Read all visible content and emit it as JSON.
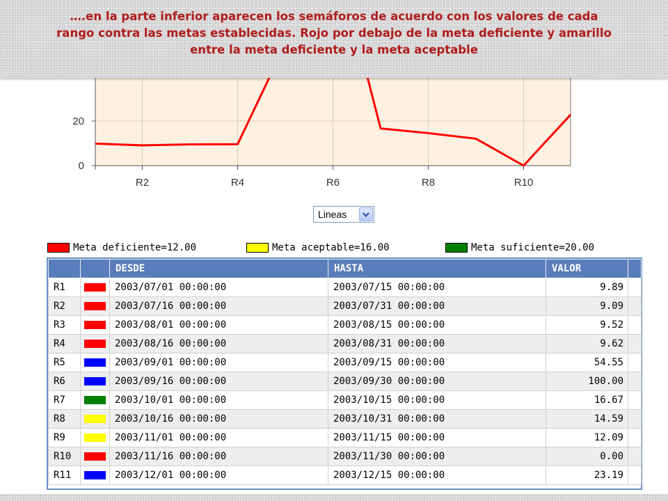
{
  "caption": {
    "line1": "….en la parte inferior aparecen los semáforos de acuerdo con los valores de cada",
    "line2": "rango contra las metas establecidas. Rojo por debajo de la meta deficiente y amarillo",
    "line3": "entre la meta deficiente y la meta aceptable"
  },
  "chart_data": {
    "type": "line",
    "x": [
      "R1",
      "R2",
      "R3",
      "R4",
      "R5",
      "R6",
      "R7",
      "R8",
      "R9",
      "R10",
      "R11"
    ],
    "series": [
      {
        "values": [
          9.89,
          9.09,
          9.52,
          9.62,
          54.55,
          100.0,
          16.67,
          14.59,
          12.09,
          0.0,
          23.19
        ],
        "color": "#ff0000"
      }
    ],
    "xtick_labels": [
      "R2",
      "R4",
      "R6",
      "R8",
      "R10"
    ],
    "ytick_labels": [
      "0",
      "20"
    ],
    "yticks": [
      0,
      20
    ],
    "ylim_visible": [
      0,
      40
    ],
    "plot_background": "#fdf1e1",
    "grid_color": "#e0cdb4",
    "grid": true
  },
  "chart_type_select": {
    "value": "Lineas"
  },
  "legend": [
    {
      "label": "Meta deficiente=12.00",
      "color": "#ff0000"
    },
    {
      "label": "Meta aceptable=16.00",
      "color": "#ffff00"
    },
    {
      "label": "Meta suficiente=20.00",
      "color": "#008000"
    }
  ],
  "table": {
    "headers": [
      "",
      "",
      "DESDE",
      "HASTA",
      "VALOR",
      ""
    ],
    "rows": [
      {
        "id": "R1",
        "light": "#ff0000",
        "desde": "2003/07/01 00:00:00",
        "hasta": "2003/07/15 00:00:00",
        "valor": "9.89"
      },
      {
        "id": "R2",
        "light": "#ff0000",
        "desde": "2003/07/16 00:00:00",
        "hasta": "2003/07/31 00:00:00",
        "valor": "9.09"
      },
      {
        "id": "R3",
        "light": "#ff0000",
        "desde": "2003/08/01 00:00:00",
        "hasta": "2003/08/15 00:00:00",
        "valor": "9.52"
      },
      {
        "id": "R4",
        "light": "#ff0000",
        "desde": "2003/08/16 00:00:00",
        "hasta": "2003/08/31 00:00:00",
        "valor": "9.62"
      },
      {
        "id": "R5",
        "light": "#0000ff",
        "desde": "2003/09/01 00:00:00",
        "hasta": "2003/09/15 00:00:00",
        "valor": "54.55"
      },
      {
        "id": "R6",
        "light": "#0000ff",
        "desde": "2003/09/16 00:00:00",
        "hasta": "2003/09/30 00:00:00",
        "valor": "100.00"
      },
      {
        "id": "R7",
        "light": "#008000",
        "desde": "2003/10/01 00:00:00",
        "hasta": "2003/10/15 00:00:00",
        "valor": "16.67"
      },
      {
        "id": "R8",
        "light": "#ffff00",
        "desde": "2003/10/16 00:00:00",
        "hasta": "2003/10/31 00:00:00",
        "valor": "14.59"
      },
      {
        "id": "R9",
        "light": "#ffff00",
        "desde": "2003/11/01 00:00:00",
        "hasta": "2003/11/15 00:00:00",
        "valor": "12.09"
      },
      {
        "id": "R10",
        "light": "#ff0000",
        "desde": "2003/11/16 00:00:00",
        "hasta": "2003/11/30 00:00:00",
        "valor": "0.00"
      },
      {
        "id": "R11",
        "light": "#0000ff",
        "desde": "2003/12/01 00:00:00",
        "hasta": "2003/12/15 00:00:00",
        "valor": "23.19"
      }
    ]
  },
  "colors": {
    "header_bg": "#5a7ebb",
    "frame": "#6a8fc4",
    "caption_text": "#b01c1c"
  }
}
